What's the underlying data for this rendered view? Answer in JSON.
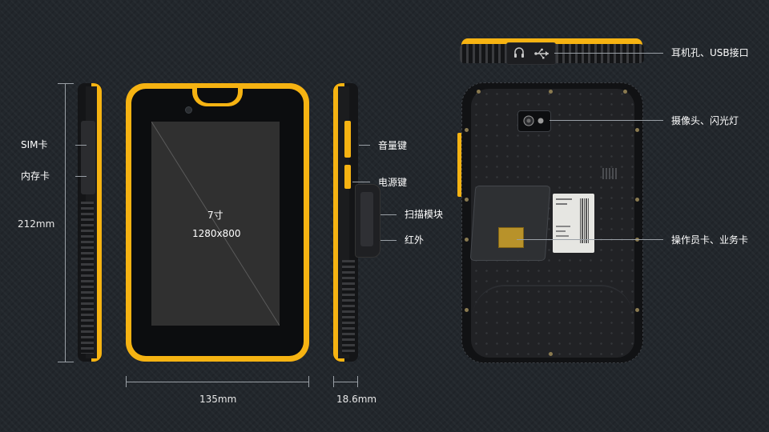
{
  "front": {
    "screen_size": "7寸",
    "resolution": "1280x800"
  },
  "dimensions": {
    "height": "212mm",
    "width": "135mm",
    "thickness": "18.6mm"
  },
  "left_side_labels": {
    "sim": "SIM卡",
    "memory": "内存卡"
  },
  "right_side_labels": {
    "volume": "音量键",
    "power": "电源键",
    "scanner": "扫描模块",
    "infrared": "红外"
  },
  "back_labels": {
    "ports": "耳机孔、USB接口",
    "camera": "摄像头、闪光灯",
    "cards": "操作员卡、业务卡"
  },
  "colors": {
    "accent": "#f6b312",
    "background": "#22272c",
    "device_black": "#141517"
  },
  "icons": {
    "headphone": "headphone-icon",
    "usb": "usb-icon"
  }
}
